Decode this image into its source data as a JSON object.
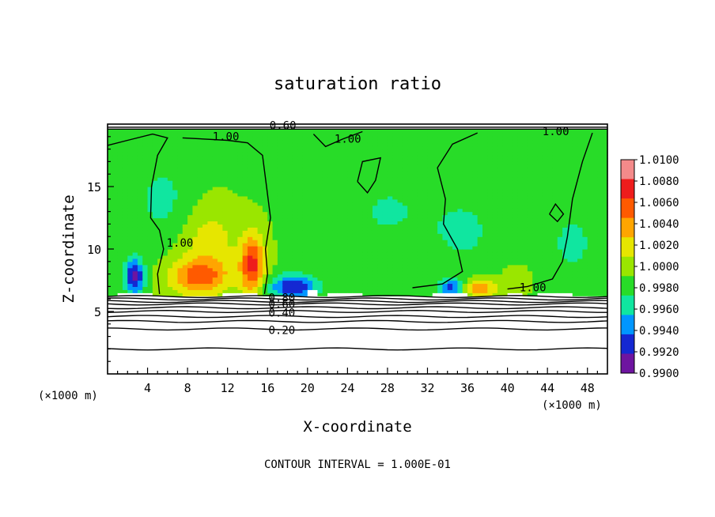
{
  "chart_data": {
    "type": "heatmap",
    "title": "saturation ratio",
    "xlabel": "X-coordinate",
    "ylabel": "Z-coordinate",
    "x_unit_left": "(×1000 m)",
    "x_unit_right": "(×1000 m)",
    "xlim": [
      0,
      50
    ],
    "ylim": [
      0,
      20
    ],
    "x_ticks": [
      4,
      8,
      12,
      16,
      20,
      24,
      28,
      32,
      36,
      40,
      44,
      48
    ],
    "y_ticks": [
      5,
      10,
      15
    ],
    "footer": "CONTOUR INTERVAL = 1.000E-01",
    "colorbar": {
      "levels": [
        "1.0100",
        "1.0080",
        "1.0060",
        "1.0040",
        "1.0020",
        "1.0000",
        "0.9980",
        "0.9960",
        "0.9940",
        "0.9920",
        "0.9900"
      ],
      "colors": [
        "#f48a8a",
        "#ee1c1c",
        "#ff5a00",
        "#ffa500",
        "#e6e600",
        "#9ae600",
        "#28dc28",
        "#10e6a0",
        "#0096ff",
        "#1428d2",
        "#6e14a0"
      ]
    },
    "contour_labels": [
      {
        "text": "0.60",
        "x": 16.2,
        "z": 19.6
      },
      {
        "text": "1.00",
        "x": 10.5,
        "z": 18.7
      },
      {
        "text": "1.00",
        "x": 22.7,
        "z": 18.5
      },
      {
        "text": "1.00",
        "x": 43.5,
        "z": 19.1
      },
      {
        "text": "1.00",
        "x": 5.9,
        "z": 10.2
      },
      {
        "text": "1.00",
        "x": 41.2,
        "z": 6.6
      },
      {
        "text": "0.80",
        "x": 16.1,
        "z": 5.8
      },
      {
        "text": "0.60",
        "x": 16.1,
        "z": 5.3
      },
      {
        "text": "0.40",
        "x": 16.1,
        "z": 4.6
      },
      {
        "text": "0.20",
        "x": 16.1,
        "z": 3.2
      }
    ],
    "hotspots": [
      {
        "x": 2.7,
        "z": 7.8,
        "value": 0.9915,
        "sx": 1.0,
        "sz": 1.5
      },
      {
        "x": 9.2,
        "z": 7.8,
        "value": 1.007,
        "sx": 3.0,
        "sz": 1.5
      },
      {
        "x": 14.5,
        "z": 8.8,
        "value": 1.0085,
        "sx": 1.2,
        "sz": 2.4
      },
      {
        "x": 10.2,
        "z": 10.8,
        "value": 1.003,
        "sx": 2.8,
        "sz": 2.6
      },
      {
        "x": 18.6,
        "z": 7.0,
        "value": 0.992,
        "sx": 2.4,
        "sz": 1.0
      },
      {
        "x": 34.4,
        "z": 6.9,
        "value": 0.9935,
        "sx": 1.2,
        "sz": 0.8
      },
      {
        "x": 37.3,
        "z": 6.9,
        "value": 1.006,
        "sx": 1.6,
        "sz": 0.7
      },
      {
        "x": 40.8,
        "z": 7.4,
        "value": 1.002,
        "sx": 1.2,
        "sz": 1.0
      },
      {
        "x": 5.5,
        "z": 14.0,
        "value": 0.9975,
        "sx": 3.0,
        "sz": 3.5
      },
      {
        "x": 28.0,
        "z": 13.0,
        "value": 0.9978,
        "sx": 4.0,
        "sz": 3.0
      },
      {
        "x": 35.5,
        "z": 11.5,
        "value": 0.9976,
        "sx": 3.5,
        "sz": 3.0
      },
      {
        "x": 46.5,
        "z": 10.5,
        "value": 0.9974,
        "sx": 2.5,
        "sz": 3.0
      }
    ]
  }
}
